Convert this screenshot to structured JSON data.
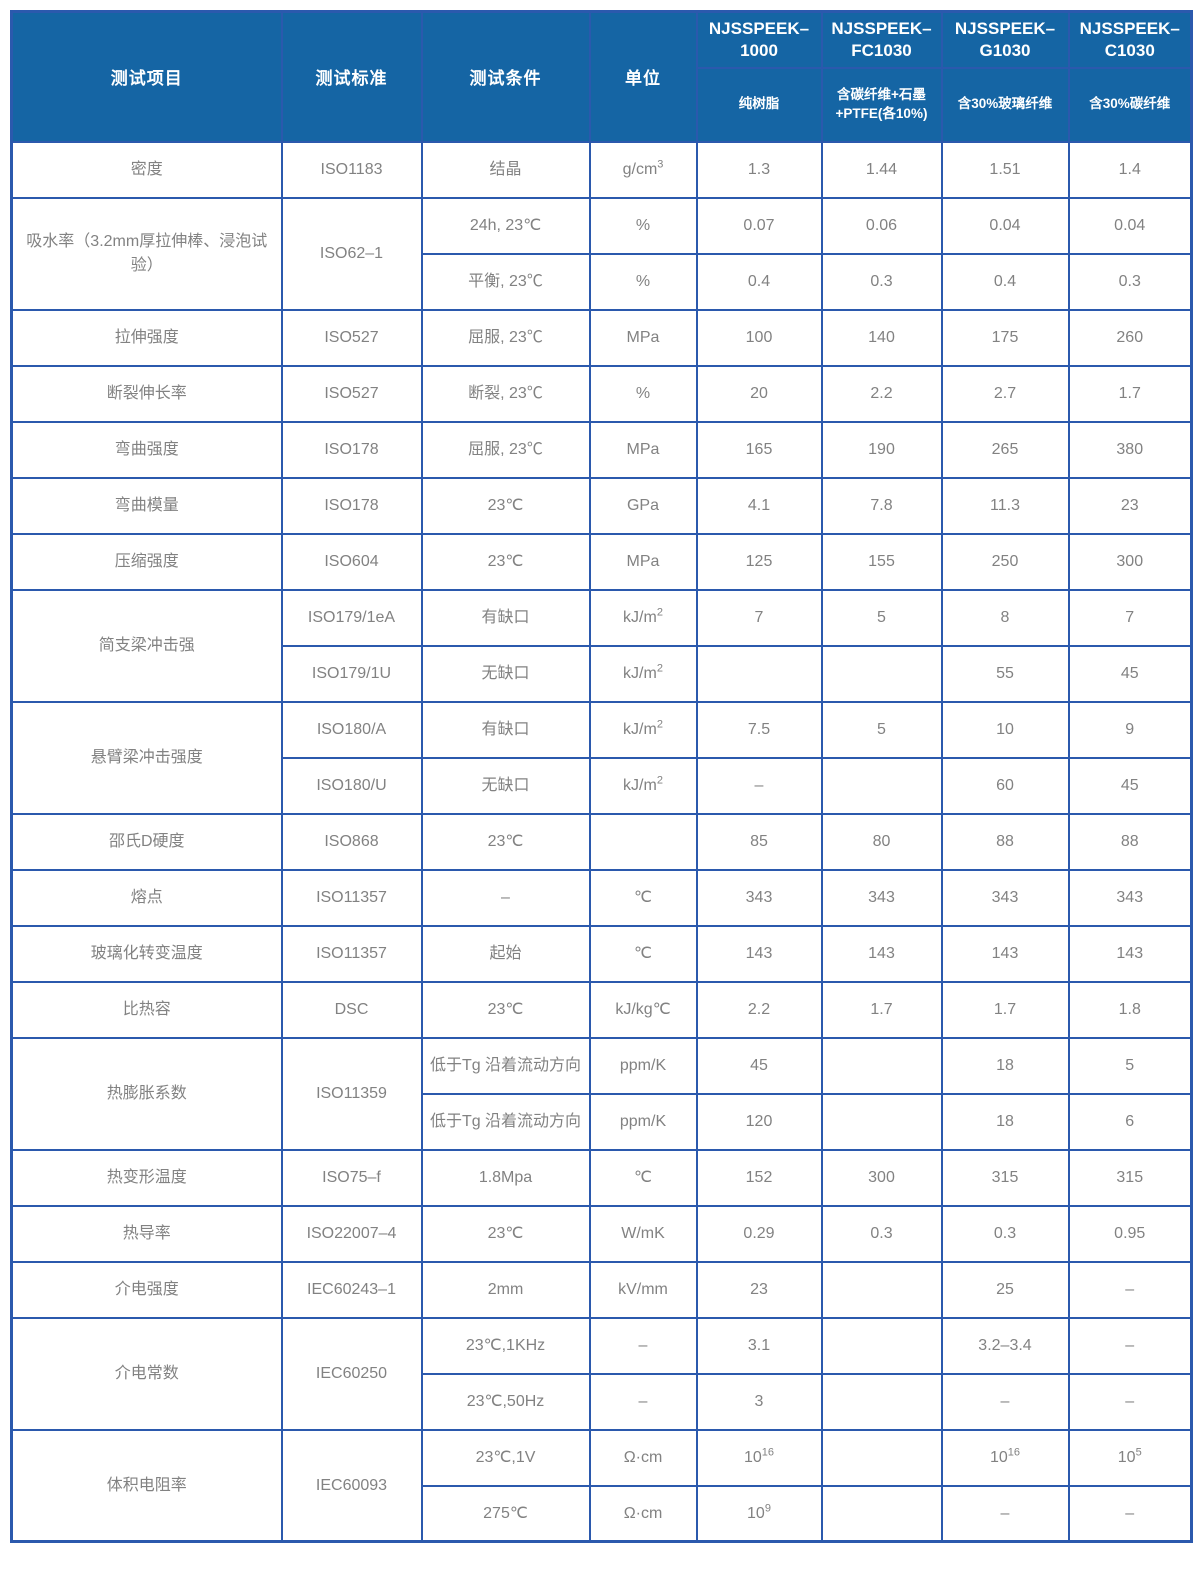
{
  "colors": {
    "header_bg": "#1565a4",
    "grid_border": "#2b59ad",
    "header_text": "#ffffff",
    "body_text": "#828282"
  },
  "table": {
    "columns": [
      "测试项目",
      "测试标准",
      "测试条件",
      "单位"
    ],
    "products": [
      {
        "name": "NJSSPEEK–\n1000",
        "desc": "纯树脂"
      },
      {
        "name": "NJSSPEEK–\nFC1030",
        "desc": "含碳纤维+石墨\n+PTFE(各10%)"
      },
      {
        "name": "NJSSPEEK–\nG1030",
        "desc": "含30%玻璃纤维"
      },
      {
        "name": "NJSSPEEK–\nC1030",
        "desc": "含30%碳纤维"
      }
    ],
    "rows": [
      [
        {
          "t": "密度"
        },
        {
          "t": "ISO1183"
        },
        {
          "t": "结晶"
        },
        {
          "t": "g/cm^3"
        },
        {
          "t": "1.3"
        },
        {
          "t": "1.44"
        },
        {
          "t": "1.51"
        },
        {
          "t": "1.4"
        }
      ],
      [
        {
          "t": "吸水率（3.2mm厚拉伸棒、浸泡试验）",
          "rs": 2
        },
        {
          "t": "ISO62–1",
          "rs": 2
        },
        {
          "t": "24h, 23℃"
        },
        {
          "t": "%"
        },
        {
          "t": "0.07"
        },
        {
          "t": "0.06"
        },
        {
          "t": "0.04"
        },
        {
          "t": "0.04"
        }
      ],
      [
        {
          "t": "平衡, 23℃"
        },
        {
          "t": "%"
        },
        {
          "t": "0.4"
        },
        {
          "t": "0.3"
        },
        {
          "t": "0.4"
        },
        {
          "t": "0.3"
        }
      ],
      [
        {
          "t": "拉伸强度"
        },
        {
          "t": "ISO527"
        },
        {
          "t": "屈服, 23℃"
        },
        {
          "t": "MPa"
        },
        {
          "t": "100"
        },
        {
          "t": "140"
        },
        {
          "t": "175"
        },
        {
          "t": "260"
        }
      ],
      [
        {
          "t": "断裂伸长率"
        },
        {
          "t": "ISO527"
        },
        {
          "t": "断裂, 23℃"
        },
        {
          "t": "%"
        },
        {
          "t": "20"
        },
        {
          "t": "2.2"
        },
        {
          "t": "2.7"
        },
        {
          "t": "1.7"
        }
      ],
      [
        {
          "t": "弯曲强度"
        },
        {
          "t": "ISO178"
        },
        {
          "t": "屈服, 23℃"
        },
        {
          "t": "MPa"
        },
        {
          "t": "165"
        },
        {
          "t": "190"
        },
        {
          "t": "265"
        },
        {
          "t": "380"
        }
      ],
      [
        {
          "t": "弯曲模量"
        },
        {
          "t": "ISO178"
        },
        {
          "t": "23℃"
        },
        {
          "t": "GPa"
        },
        {
          "t": "4.1"
        },
        {
          "t": "7.8"
        },
        {
          "t": "11.3"
        },
        {
          "t": "23"
        }
      ],
      [
        {
          "t": "压缩强度"
        },
        {
          "t": "ISO604"
        },
        {
          "t": "23℃"
        },
        {
          "t": "MPa"
        },
        {
          "t": "125"
        },
        {
          "t": "155"
        },
        {
          "t": "250"
        },
        {
          "t": "300"
        }
      ],
      [
        {
          "t": "简支梁冲击强",
          "rs": 2
        },
        {
          "t": "ISO179/1eA"
        },
        {
          "t": "有缺口"
        },
        {
          "t": "kJ/m^2"
        },
        {
          "t": "7"
        },
        {
          "t": "5"
        },
        {
          "t": "8"
        },
        {
          "t": "7"
        }
      ],
      [
        {
          "t": "ISO179/1U"
        },
        {
          "t": "无缺口"
        },
        {
          "t": "kJ/m^2"
        },
        {
          "t": ""
        },
        {
          "t": ""
        },
        {
          "t": "55"
        },
        {
          "t": "45"
        }
      ],
      [
        {
          "t": "悬臂梁冲击强度",
          "rs": 2
        },
        {
          "t": "ISO180/A"
        },
        {
          "t": "有缺口"
        },
        {
          "t": "kJ/m^2"
        },
        {
          "t": "7.5"
        },
        {
          "t": "5"
        },
        {
          "t": "10"
        },
        {
          "t": "9"
        }
      ],
      [
        {
          "t": "ISO180/U"
        },
        {
          "t": "无缺口"
        },
        {
          "t": "kJ/m^2"
        },
        {
          "t": "–"
        },
        {
          "t": ""
        },
        {
          "t": "60"
        },
        {
          "t": "45"
        }
      ],
      [
        {
          "t": "邵氏D硬度"
        },
        {
          "t": "ISO868"
        },
        {
          "t": "23℃"
        },
        {
          "t": ""
        },
        {
          "t": "85"
        },
        {
          "t": "80"
        },
        {
          "t": "88"
        },
        {
          "t": "88"
        }
      ],
      [
        {
          "t": "熔点"
        },
        {
          "t": "ISO11357"
        },
        {
          "t": "–"
        },
        {
          "t": "℃"
        },
        {
          "t": "343"
        },
        {
          "t": "343"
        },
        {
          "t": "343"
        },
        {
          "t": "343"
        }
      ],
      [
        {
          "t": "玻璃化转变温度"
        },
        {
          "t": "ISO11357"
        },
        {
          "t": "起始"
        },
        {
          "t": "℃"
        },
        {
          "t": "143"
        },
        {
          "t": "143"
        },
        {
          "t": "143"
        },
        {
          "t": "143"
        }
      ],
      [
        {
          "t": "比热容"
        },
        {
          "t": "DSC"
        },
        {
          "t": "23℃"
        },
        {
          "t": "kJ/kg℃"
        },
        {
          "t": "2.2"
        },
        {
          "t": "1.7"
        },
        {
          "t": "1.7"
        },
        {
          "t": "1.8"
        }
      ],
      [
        {
          "t": "热膨胀系数",
          "rs": 2
        },
        {
          "t": "ISO11359",
          "rs": 2
        },
        {
          "t": "低于Tg 沿着流动方向"
        },
        {
          "t": "ppm/K"
        },
        {
          "t": "45"
        },
        {
          "t": ""
        },
        {
          "t": "18"
        },
        {
          "t": "5"
        }
      ],
      [
        {
          "t": "低于Tg 沿着流动方向"
        },
        {
          "t": "ppm/K"
        },
        {
          "t": "120"
        },
        {
          "t": ""
        },
        {
          "t": "18"
        },
        {
          "t": "6"
        }
      ],
      [
        {
          "t": "热变形温度"
        },
        {
          "t": "ISO75–f"
        },
        {
          "t": "1.8Mpa"
        },
        {
          "t": "℃"
        },
        {
          "t": "152"
        },
        {
          "t": "300"
        },
        {
          "t": "315"
        },
        {
          "t": "315"
        }
      ],
      [
        {
          "t": "热导率"
        },
        {
          "t": "ISO22007–4"
        },
        {
          "t": "23℃"
        },
        {
          "t": "W/mK"
        },
        {
          "t": "0.29"
        },
        {
          "t": "0.3"
        },
        {
          "t": "0.3"
        },
        {
          "t": "0.95"
        }
      ],
      [
        {
          "t": "介电强度"
        },
        {
          "t": "IEC60243–1"
        },
        {
          "t": "2mm"
        },
        {
          "t": "kV/mm"
        },
        {
          "t": "23"
        },
        {
          "t": ""
        },
        {
          "t": "25"
        },
        {
          "t": "–"
        }
      ],
      [
        {
          "t": "介电常数",
          "rs": 2
        },
        {
          "t": "IEC60250",
          "rs": 2
        },
        {
          "t": "23℃,1KHz"
        },
        {
          "t": "–"
        },
        {
          "t": "3.1"
        },
        {
          "t": ""
        },
        {
          "t": "3.2–3.4"
        },
        {
          "t": "–"
        }
      ],
      [
        {
          "t": "23℃,50Hz"
        },
        {
          "t": "–"
        },
        {
          "t": "3"
        },
        {
          "t": ""
        },
        {
          "t": "–"
        },
        {
          "t": "–"
        }
      ],
      [
        {
          "t": "体积电阻率",
          "rs": 2
        },
        {
          "t": "IEC60093",
          "rs": 2
        },
        {
          "t": "23℃,1V"
        },
        {
          "t": "Ω·cm"
        },
        {
          "t": "10^16"
        },
        {
          "t": ""
        },
        {
          "t": "10^16"
        },
        {
          "t": "10^5"
        }
      ],
      [
        {
          "t": "275℃"
        },
        {
          "t": "Ω·cm"
        },
        {
          "t": "10^9"
        },
        {
          "t": ""
        },
        {
          "t": "–"
        },
        {
          "t": "–"
        }
      ]
    ]
  }
}
